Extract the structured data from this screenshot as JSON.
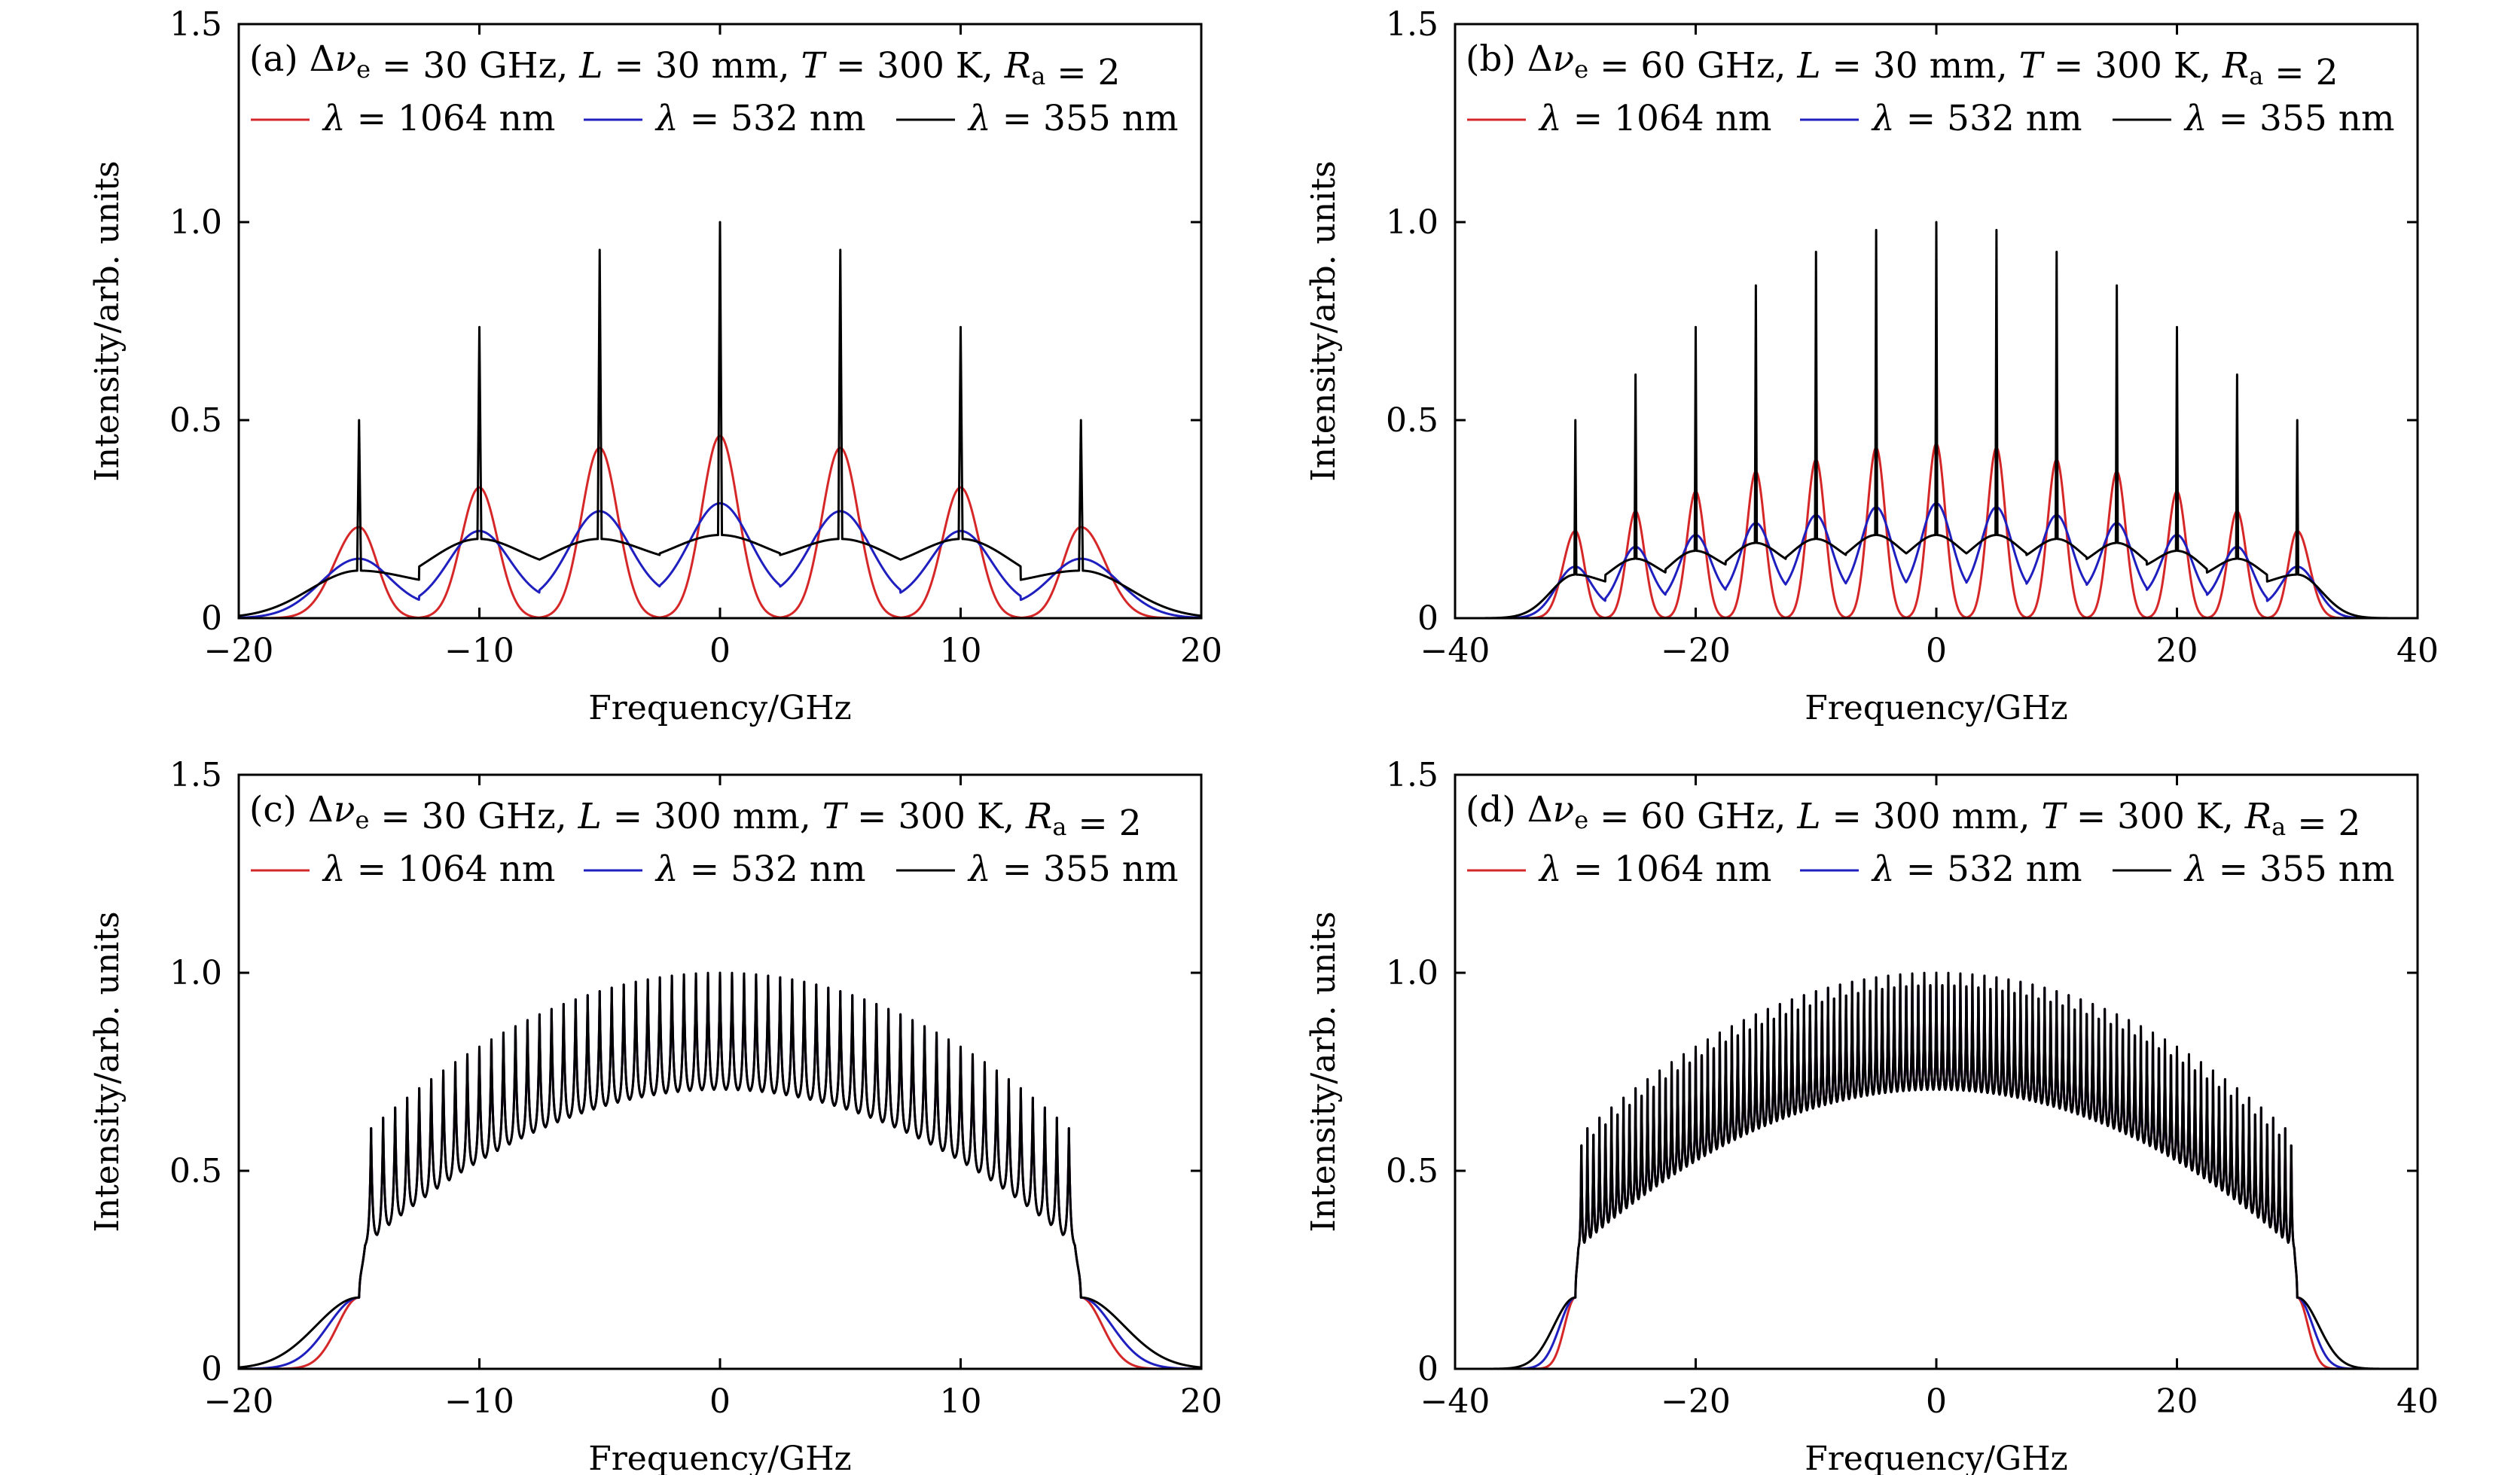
{
  "chart_data": [
    {
      "id": "a",
      "type": "line",
      "title": "(a) Δνe = 30 GHz, L = 30 mm, T = 300 K, Ra = 2",
      "annotation": {
        "prefix": "(a) ",
        "dnu": "30",
        "L": "30",
        "T": "300",
        "Ra": "2"
      },
      "xlabel": "Frequency/GHz",
      "ylabel": "Intensity/arb. units",
      "xlim": [
        -20,
        20
      ],
      "ylim": [
        0,
        1.5
      ],
      "xticks": [
        -20,
        -10,
        0,
        10,
        20
      ],
      "xtick_labels": [
        "−20",
        "−10",
        "0",
        "10",
        "20"
      ],
      "yticks": [
        0,
        0.5,
        1.0,
        1.5
      ],
      "ytick_labels": [
        "0",
        "0.5",
        "1.0",
        "1.5"
      ],
      "grid": false,
      "legend_position": "top, below annotation",
      "model": {
        "mode_spacing": 5,
        "half_band": 15,
        "edge_width": 1.4
      },
      "series": [
        {
          "name": "λ = 1064 nm",
          "lambda": "1064",
          "color": "#d62728",
          "peaks_x": [
            -15,
            -10,
            -5,
            0,
            5,
            10,
            15
          ],
          "peaks_y": [
            0.23,
            0.33,
            0.43,
            0.46,
            0.43,
            0.33,
            0.23
          ],
          "valley_y": [
            0.0,
            0.0,
            0.0,
            0.0,
            0.0,
            0.0
          ],
          "spike_y": []
        },
        {
          "name": "λ = 532 nm",
          "lambda": "532",
          "color": "#1f1fbf",
          "peaks_x": [
            -15,
            -10,
            -5,
            0,
            5,
            10,
            15
          ],
          "peaks_y": [
            0.15,
            0.22,
            0.27,
            0.29,
            0.27,
            0.22,
            0.15
          ],
          "valley_y": [
            0.03,
            0.04,
            0.05,
            0.05,
            0.04,
            0.03
          ],
          "spike_y": []
        },
        {
          "name": "λ = 355 nm",
          "lambda": "355",
          "color": "#000000",
          "peaks_x": [
            -15,
            -10,
            -5,
            0,
            5,
            10,
            15
          ],
          "peaks_y": [
            0.12,
            0.2,
            0.2,
            0.21,
            0.2,
            0.2,
            0.12
          ],
          "valley_y": [
            0.08,
            0.11,
            0.13,
            0.13,
            0.11,
            0.08
          ],
          "spike_y": [
            0.5,
            0.735,
            0.93,
            1.0,
            0.93,
            0.735,
            0.5
          ]
        }
      ]
    },
    {
      "id": "b",
      "type": "line",
      "title": "(b) Δνe = 60 GHz, L = 30 mm, T = 300 K, Ra = 2",
      "annotation": {
        "prefix": "(b) ",
        "dnu": "60",
        "L": "30",
        "T": "300",
        "Ra": "2"
      },
      "xlabel": "Frequency/GHz",
      "ylabel": "Intensity/arb. units",
      "xlim": [
        -40,
        40
      ],
      "ylim": [
        0,
        1.5
      ],
      "xticks": [
        -40,
        -20,
        0,
        20,
        40
      ],
      "xtick_labels": [
        "−40",
        "−20",
        "0",
        "20",
        "40"
      ],
      "yticks": [
        0,
        0.5,
        1.0,
        1.5
      ],
      "ytick_labels": [
        "0",
        "0.5",
        "1.0",
        "1.5"
      ],
      "grid": false,
      "legend_position": "top, below annotation",
      "model": {
        "mode_spacing": 5,
        "half_band": 30,
        "edge_width": 2.2
      },
      "series": [
        {
          "name": "λ = 1064 nm",
          "lambda": "1064",
          "color": "#d62728",
          "peaks_x": [
            -30,
            -25,
            -20,
            -15,
            -10,
            -5,
            0,
            5,
            10,
            15,
            20,
            25,
            30
          ],
          "peaks_y": [
            0.22,
            0.27,
            0.32,
            0.37,
            0.4,
            0.43,
            0.44,
            0.43,
            0.4,
            0.37,
            0.32,
            0.27,
            0.22
          ],
          "valley_y": [
            0.0,
            0.0,
            0.0,
            0.0,
            0.0,
            0.0,
            0.0,
            0.0,
            0.0,
            0.0,
            0.0,
            0.0
          ],
          "spike_y": []
        },
        {
          "name": "λ = 532 nm",
          "lambda": "532",
          "color": "#1f1fbf",
          "peaks_x": [
            -30,
            -25,
            -20,
            -15,
            -10,
            -5,
            0,
            5,
            10,
            15,
            20,
            25,
            30
          ],
          "peaks_y": [
            0.13,
            0.18,
            0.21,
            0.24,
            0.26,
            0.28,
            0.29,
            0.28,
            0.26,
            0.24,
            0.21,
            0.18,
            0.13
          ],
          "valley_y": [
            0.03,
            0.04,
            0.05,
            0.06,
            0.06,
            0.06,
            0.06,
            0.06,
            0.06,
            0.05,
            0.04,
            0.03
          ],
          "spike_y": []
        },
        {
          "name": "λ = 355 nm",
          "lambda": "355",
          "color": "#000000",
          "peaks_x": [
            -30,
            -25,
            -20,
            -15,
            -10,
            -5,
            0,
            5,
            10,
            15,
            20,
            25,
            30
          ],
          "peaks_y": [
            0.11,
            0.15,
            0.17,
            0.19,
            0.2,
            0.21,
            0.21,
            0.21,
            0.2,
            0.19,
            0.17,
            0.15,
            0.11
          ],
          "valley_y": [
            0.08,
            0.09,
            0.11,
            0.12,
            0.13,
            0.13,
            0.13,
            0.13,
            0.12,
            0.11,
            0.09,
            0.08
          ],
          "spike_y": [
            0.5,
            0.615,
            0.735,
            0.84,
            0.925,
            0.98,
            1.0,
            0.98,
            0.925,
            0.84,
            0.735,
            0.615,
            0.5
          ]
        }
      ]
    },
    {
      "id": "c",
      "type": "line",
      "title": "(c) Δνe = 30 GHz, L = 300 mm, T = 300 K, Ra = 2",
      "annotation": {
        "prefix": "(c) ",
        "dnu": "30",
        "L": "300",
        "T": "300",
        "Ra": "2"
      },
      "xlabel": "Frequency/GHz",
      "ylabel": "Intensity/arb. units",
      "xlim": [
        -20,
        20
      ],
      "ylim": [
        0,
        1.5
      ],
      "xticks": [
        -20,
        -10,
        0,
        10,
        20
      ],
      "xtick_labels": [
        "−20",
        "−10",
        "0",
        "10",
        "20"
      ],
      "yticks": [
        0,
        0.5,
        1.0,
        1.5
      ],
      "ytick_labels": [
        "0",
        "0.5",
        "1.0",
        "1.5"
      ],
      "grid": false,
      "legend_position": "top, below annotation",
      "model": {
        "mode_spacing": 0.5,
        "half_band": 15,
        "edge_width": 1.2,
        "mode_range": [
          -14.75,
          14.75
        ],
        "envelope_ends": {
          "x_inner": 14.75,
          "upper": 0.56,
          "lower": 0.24,
          "x_edge": 15,
          "edge_y": 0.18
        }
      },
      "series": [
        {
          "name": "λ = 1064 nm",
          "lambda": "1064",
          "color": "#d62728",
          "envelope": {
            "upper_center": 1.0,
            "lower_center": 0.7
          }
        },
        {
          "name": "λ = 532 nm",
          "lambda": "532",
          "color": "#1f1fbf",
          "envelope": {
            "upper_center": 1.0,
            "lower_center": 0.7
          }
        },
        {
          "name": "λ = 355 nm",
          "lambda": "355",
          "color": "#000000",
          "envelope": {
            "upper_center": 1.0,
            "lower_center": 0.7
          }
        }
      ]
    },
    {
      "id": "d",
      "type": "line",
      "title": "(d) Δνe = 60 GHz, L = 300 mm, T = 300 K, Ra = 2",
      "annotation": {
        "prefix": "(d) ",
        "dnu": "60",
        "L": "300",
        "T": "300",
        "Ra": "2"
      },
      "xlabel": "Frequency/GHz",
      "ylabel": "Intensity/arb. units",
      "xlim": [
        -40,
        40
      ],
      "ylim": [
        0,
        1.5
      ],
      "xticks": [
        -40,
        -20,
        0,
        20,
        40
      ],
      "xtick_labels": [
        "−40",
        "−20",
        "0",
        "20",
        "40"
      ],
      "yticks": [
        0,
        0.5,
        1.0,
        1.5
      ],
      "ytick_labels": [
        "0",
        "0.5",
        "1.0",
        "1.5"
      ],
      "grid": false,
      "legend_position": "top, below annotation",
      "model": {
        "mode_spacing": 0.5,
        "half_band": 30,
        "edge_width": 1.6,
        "mode_range": [
          -29.75,
          29.75
        ],
        "envelope_ends": {
          "x_inner": 29.75,
          "upper": 0.52,
          "lower": 0.24,
          "x_edge": 30,
          "edge_y": 0.18
        }
      },
      "series": [
        {
          "name": "λ = 1064 nm",
          "lambda": "1064",
          "color": "#d62728",
          "envelope": {
            "upper_center": 1.0,
            "lower_center": 0.7
          }
        },
        {
          "name": "λ = 532 nm",
          "lambda": "532",
          "color": "#1f1fbf",
          "envelope": {
            "upper_center": 1.0,
            "lower_center": 0.7
          }
        },
        {
          "name": "λ = 355 nm",
          "lambda": "355",
          "color": "#000000",
          "envelope": {
            "upper_center": 1.0,
            "lower_center": 0.7
          }
        }
      ]
    }
  ]
}
